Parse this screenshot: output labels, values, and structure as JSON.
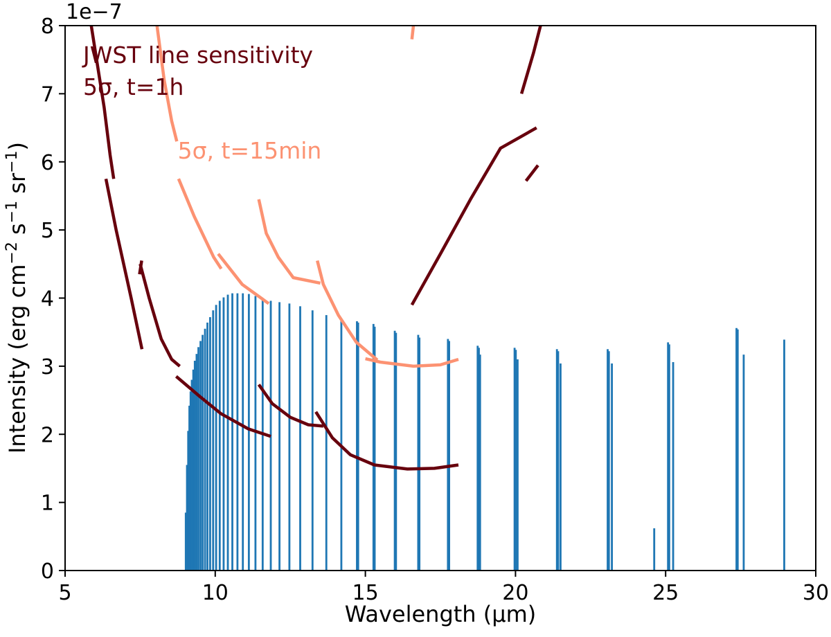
{
  "chart_data": {
    "type": "bar+line",
    "xlabel": "Wavelength (μm)",
    "ylabel_parts": [
      "Intensity (erg cm",
      "−2",
      " s",
      "−1",
      " sr",
      "−1",
      ")"
    ],
    "xlim": [
      5,
      30
    ],
    "ylim": [
      0,
      8e-07
    ],
    "offset_label": "1e−7",
    "x_ticks": [
      5,
      10,
      15,
      20,
      25,
      30
    ],
    "y_ticks": [
      0,
      1,
      2,
      3,
      4,
      5,
      6,
      7,
      8
    ],
    "grid": false,
    "colors": {
      "bars": "#1f77b4",
      "sens_1h": "#67000d",
      "sens_15min": "#fc9272"
    },
    "annotations": [
      {
        "lines": [
          "JWST line sensitivity",
          "5σ, t=1h"
        ],
        "color": "#67000d",
        "x": 5.6,
        "y": 7.45e-07
      },
      {
        "lines": [
          "5σ, t=15min"
        ],
        "color": "#fc9272",
        "x": 8.75,
        "y": 6.05e-07
      }
    ],
    "bars": [
      [
        9.02,
        0.85
      ],
      [
        9.06,
        1.55
      ],
      [
        9.1,
        2.05
      ],
      [
        9.14,
        2.42
      ],
      [
        9.18,
        2.63
      ],
      [
        9.22,
        2.8
      ],
      [
        9.27,
        2.95
      ],
      [
        9.32,
        3.08
      ],
      [
        9.38,
        3.18
      ],
      [
        9.44,
        3.28
      ],
      [
        9.51,
        3.37
      ],
      [
        9.58,
        3.46
      ],
      [
        9.66,
        3.55
      ],
      [
        9.74,
        3.64
      ],
      [
        9.83,
        3.72
      ],
      [
        9.93,
        3.82
      ],
      [
        10.03,
        3.9
      ],
      [
        10.15,
        3.96
      ],
      [
        10.28,
        4.01
      ],
      [
        10.42,
        4.05
      ],
      [
        10.57,
        4.07
      ],
      [
        10.74,
        4.07
      ],
      [
        10.92,
        4.07
      ],
      [
        11.12,
        4.06
      ],
      [
        11.34,
        4.03
      ],
      [
        11.58,
        4.0
      ],
      [
        11.85,
        3.96
      ],
      [
        12.14,
        3.94
      ],
      [
        12.47,
        3.92
      ],
      [
        12.83,
        3.88
      ],
      [
        13.24,
        3.82
      ],
      [
        13.7,
        3.75
      ],
      [
        14.2,
        3.7
      ],
      [
        14.72,
        3.66
      ],
      [
        14.76,
        3.64
      ],
      [
        15.27,
        3.62
      ],
      [
        15.31,
        3.58
      ],
      [
        15.98,
        3.52
      ],
      [
        16.02,
        3.49
      ],
      [
        16.76,
        3.46
      ],
      [
        16.8,
        3.42
      ],
      [
        17.75,
        3.4
      ],
      [
        17.79,
        3.37
      ],
      [
        18.74,
        3.3
      ],
      [
        18.78,
        3.27
      ],
      [
        18.82,
        3.17
      ],
      [
        19.97,
        3.27
      ],
      [
        20.01,
        3.24
      ],
      [
        20.07,
        3.1
      ],
      [
        21.38,
        3.25
      ],
      [
        21.42,
        3.22
      ],
      [
        21.5,
        3.04
      ],
      [
        23.07,
        3.25
      ],
      [
        23.11,
        3.22
      ],
      [
        23.21,
        3.04
      ],
      [
        24.62,
        0.62
      ],
      [
        25.08,
        3.35
      ],
      [
        25.12,
        3.32
      ],
      [
        25.25,
        3.06
      ],
      [
        27.36,
        3.56
      ],
      [
        27.4,
        3.54
      ],
      [
        27.6,
        3.17
      ],
      [
        28.95,
        3.39
      ]
    ],
    "sens_1h": [
      [
        [
          5.8,
          8.2
        ],
        [
          6.05,
          7.5
        ],
        [
          6.3,
          6.8
        ],
        [
          6.5,
          6.1
        ],
        [
          6.62,
          5.75
        ]
      ],
      [
        [
          6.36,
          5.75
        ],
        [
          6.7,
          5.0
        ],
        [
          7.2,
          4.0
        ],
        [
          7.56,
          3.25
        ]
      ],
      [
        [
          7.48,
          4.35
        ],
        [
          7.55,
          4.55
        ]
      ],
      [
        [
          7.5,
          4.5
        ],
        [
          7.8,
          4.0
        ],
        [
          8.2,
          3.4
        ],
        [
          8.55,
          3.1
        ],
        [
          8.82,
          3.0
        ]
      ],
      [
        [
          8.7,
          2.85
        ],
        [
          9.5,
          2.55
        ],
        [
          10.2,
          2.3
        ],
        [
          11.1,
          2.08
        ],
        [
          11.85,
          1.97
        ]
      ],
      [
        [
          11.45,
          2.73
        ],
        [
          11.9,
          2.45
        ],
        [
          12.5,
          2.25
        ],
        [
          13.1,
          2.14
        ],
        [
          13.6,
          2.12
        ]
      ],
      [
        [
          13.35,
          2.33
        ],
        [
          13.9,
          1.95
        ],
        [
          14.5,
          1.7
        ],
        [
          15.3,
          1.55
        ],
        [
          16.4,
          1.49
        ],
        [
          17.3,
          1.5
        ],
        [
          18.1,
          1.55
        ]
      ],
      [
        [
          16.55,
          3.9
        ],
        [
          17.5,
          4.65
        ],
        [
          18.5,
          5.45
        ],
        [
          19.5,
          6.2
        ],
        [
          20.7,
          6.5
        ]
      ],
      [
        [
          20.35,
          5.72
        ],
        [
          20.75,
          5.95
        ]
      ],
      [
        [
          20.2,
          7.0
        ],
        [
          20.6,
          7.6
        ],
        [
          20.95,
          8.2
        ]
      ]
    ],
    "sens_15min": [
      [
        [
          8.0,
          8.2
        ],
        [
          8.3,
          7.2
        ],
        [
          8.55,
          6.6
        ],
        [
          8.72,
          6.3
        ]
      ],
      [
        [
          8.78,
          5.75
        ],
        [
          9.3,
          5.2
        ],
        [
          9.95,
          4.6
        ],
        [
          10.2,
          4.43
        ]
      ],
      [
        [
          10.1,
          4.65
        ],
        [
          10.9,
          4.2
        ],
        [
          11.78,
          3.92
        ]
      ],
      [
        [
          11.45,
          5.45
        ],
        [
          11.7,
          4.95
        ],
        [
          12.1,
          4.6
        ],
        [
          12.6,
          4.3
        ],
        [
          13.5,
          4.22
        ]
      ],
      [
        [
          13.4,
          4.55
        ],
        [
          13.6,
          4.2
        ],
        [
          14.1,
          3.75
        ],
        [
          14.7,
          3.35
        ],
        [
          15.4,
          3.09
        ]
      ],
      [
        [
          15.0,
          3.11
        ],
        [
          15.5,
          3.06
        ],
        [
          16.6,
          3.0
        ],
        [
          17.5,
          3.02
        ],
        [
          18.1,
          3.1
        ]
      ],
      [
        [
          16.55,
          7.8
        ],
        [
          16.6,
          8.0
        ],
        [
          16.72,
          8.3
        ]
      ]
    ]
  }
}
